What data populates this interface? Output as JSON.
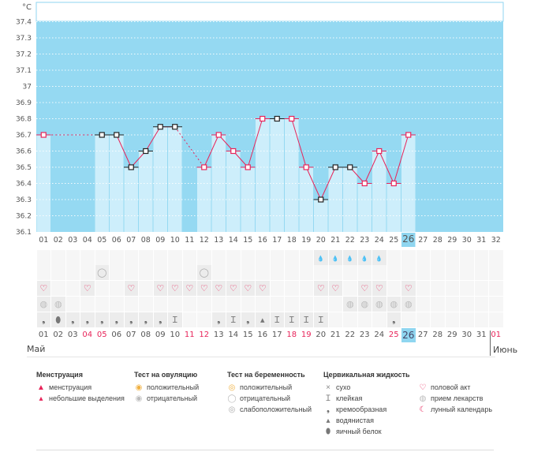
{
  "chart_data": {
    "type": "line",
    "unit_label": "°C",
    "ylim": [
      36.1,
      37.4
    ],
    "yticks": [
      "36.1",
      "36.2",
      "36.3",
      "36.4",
      "36.5",
      "36.6",
      "36.7",
      "36.8",
      "36.9",
      "37",
      "37.1",
      "37.2",
      "37.3",
      "37.4"
    ],
    "x": [
      "01",
      "02",
      "03",
      "04",
      "05",
      "06",
      "07",
      "08",
      "09",
      "10",
      "11",
      "12",
      "13",
      "14",
      "15",
      "16",
      "17",
      "18",
      "19",
      "20",
      "21",
      "22",
      "23",
      "24",
      "25",
      "26",
      "27",
      "28",
      "29",
      "30",
      "31",
      "32"
    ],
    "values": [
      36.7,
      null,
      null,
      null,
      36.7,
      36.7,
      36.5,
      36.6,
      36.75,
      36.75,
      null,
      36.5,
      36.7,
      36.6,
      36.5,
      36.8,
      36.8,
      36.8,
      36.5,
      36.3,
      36.5,
      36.5,
      36.4,
      36.6,
      36.4,
      36.7,
      null,
      null,
      null,
      null,
      null,
      null
    ],
    "marker_type": [
      "pink",
      null,
      null,
      null,
      "black",
      "black",
      "black",
      "black",
      "black",
      "black",
      null,
      "pink",
      "pink",
      "pink",
      "pink",
      "pink",
      "black",
      "pink",
      "pink",
      "black",
      "black",
      "black",
      "pink",
      "pink",
      "pink",
      "pink",
      null,
      null,
      null,
      null,
      null,
      null
    ],
    "today_index": 25,
    "colors": {
      "bg": "#95d9f2",
      "bar": "#cdeefb",
      "line": "#e8245a",
      "today": "#8fd6f0"
    }
  },
  "rows": {
    "spotting": [
      20,
      21,
      22,
      23,
      24
    ],
    "pregnancy_negative": [
      5,
      12
    ],
    "intercourse": [
      1,
      4,
      7,
      9,
      10,
      11,
      12,
      13,
      14,
      15,
      16,
      20,
      21,
      23,
      24,
      26
    ],
    "medication": [
      1,
      2,
      22,
      23,
      24,
      25,
      26
    ],
    "cervical": {
      "1": "cream",
      "2": "eggwhite",
      "3": "cream",
      "4": "cream",
      "5": "cream",
      "6": "cream",
      "7": "cream",
      "8": "cream",
      "9": "cream",
      "10": "sticky",
      "13": "cream",
      "14": "sticky",
      "15": "cream",
      "16": "watery",
      "17": "sticky",
      "18": "sticky",
      "19": "sticky",
      "20": "sticky",
      "25": "cream"
    }
  },
  "dates": [
    "01",
    "02",
    "03",
    "04",
    "05",
    "06",
    "07",
    "08",
    "09",
    "10",
    "11",
    "12",
    "13",
    "14",
    "15",
    "16",
    "17",
    "18",
    "19",
    "20",
    "21",
    "22",
    "23",
    "24",
    "25",
    "26",
    "27",
    "28",
    "29",
    "30",
    "31",
    "01"
  ],
  "red_dates": [
    3,
    4,
    10,
    11,
    17,
    18,
    24,
    31
  ],
  "month_start": "Май",
  "month_next": "Июнь",
  "legend": [
    {
      "title": "Менструация",
      "items": [
        {
          "icon": "menstruation",
          "label": "менструация"
        },
        {
          "icon": "spotting",
          "label": "небольшие выделения"
        }
      ]
    },
    {
      "title": "Тест на овуляцию",
      "items": [
        {
          "icon": "ovu-pos",
          "label": "положительный"
        },
        {
          "icon": "ovu-neg",
          "label": "отрицательный"
        }
      ]
    },
    {
      "title": "Тест на беременность",
      "items": [
        {
          "icon": "preg-pos",
          "label": "положительный"
        },
        {
          "icon": "preg-neg",
          "label": "отрицательный"
        },
        {
          "icon": "preg-weak",
          "label": "слабоположительный"
        }
      ]
    },
    {
      "title": "Цервикальная жидкость",
      "items": [
        {
          "icon": "dry",
          "label": "сухо"
        },
        {
          "icon": "sticky",
          "label": "клейкая"
        },
        {
          "icon": "cream",
          "label": "кремообразная"
        },
        {
          "icon": "watery",
          "label": "водянистая"
        },
        {
          "icon": "eggwhite",
          "label": "яичный белок"
        }
      ]
    },
    {
      "title": "",
      "items": [
        {
          "icon": "intercourse",
          "label": "половой акт"
        },
        {
          "icon": "medication",
          "label": "прием лекарств"
        },
        {
          "icon": "moon",
          "label": "лунный календарь"
        }
      ]
    }
  ]
}
